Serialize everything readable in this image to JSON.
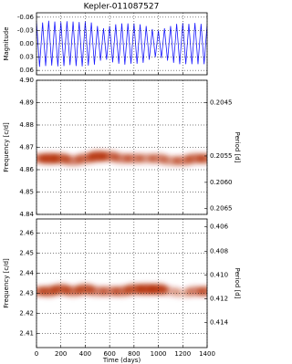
{
  "chart_data": [
    {
      "type": "line",
      "title": "Kepler-011087527",
      "ylabel": "Magnitude",
      "color": "#1a1aff",
      "x": [
        0,
        25,
        50,
        75,
        100,
        125,
        150,
        175,
        200,
        225,
        250,
        275,
        300,
        325,
        350,
        375,
        400,
        425,
        450,
        475,
        500,
        525,
        550,
        575,
        600,
        625,
        650,
        675,
        700,
        725,
        750,
        775,
        800,
        825,
        850,
        875,
        900,
        925,
        950,
        975,
        1000,
        1025,
        1050,
        1075,
        1100,
        1125,
        1150,
        1175,
        1200,
        1225,
        1250,
        1275,
        1300,
        1325,
        1350,
        1375,
        1400
      ],
      "values": [
        -0.05,
        0.052,
        -0.048,
        0.05,
        -0.052,
        0.049,
        -0.05,
        0.051,
        -0.049,
        0.05,
        -0.051,
        0.048,
        -0.05,
        0.05,
        -0.049,
        0.051,
        -0.05,
        0.049,
        -0.048,
        0.047,
        -0.04,
        0.038,
        -0.035,
        0.036,
        -0.04,
        0.042,
        -0.044,
        0.045,
        -0.046,
        0.047,
        -0.046,
        0.045,
        -0.046,
        0.045,
        -0.044,
        0.043,
        -0.04,
        0.036,
        -0.033,
        0.03,
        -0.03,
        0.032,
        -0.035,
        0.038,
        -0.04,
        0.043,
        -0.045,
        0.046,
        -0.047,
        0.046,
        -0.045,
        0.046,
        -0.047,
        0.046,
        -0.045,
        0.046,
        -0.044
      ],
      "xlim": [
        0,
        1400
      ],
      "xticks": [
        0,
        200,
        400,
        600,
        800,
        1000,
        1200,
        1400
      ],
      "ylim": [
        -0.07,
        0.07
      ],
      "y_inverted": true,
      "yticks": [
        -0.06,
        -0.03,
        {
          "value": 0,
          "label": "0.00"
        },
        0.03,
        0.06
      ],
      "grid": true
    },
    {
      "type": "heatmap",
      "ylabel": "Frequency [c/d]",
      "y2label": "Period [d]",
      "color": "#b22a00",
      "x": [
        0,
        100,
        200,
        300,
        400,
        500,
        600,
        700,
        800,
        900,
        1000,
        1100,
        1200,
        1300,
        1400
      ],
      "values": [
        4.865,
        4.865,
        4.865,
        4.864,
        4.865,
        4.866,
        4.866,
        4.865,
        4.865,
        4.865,
        4.865,
        4.864,
        4.864,
        4.865,
        4.865
      ],
      "power": [
        0.6,
        0.9,
        0.8,
        0.6,
        0.7,
        0.9,
        0.7,
        0.6,
        0.6,
        0.5,
        0.6,
        0.5,
        0.6,
        0.7,
        0.7
      ],
      "xlim": [
        0,
        1400
      ],
      "xticks": [
        0,
        200,
        400,
        600,
        800,
        1000,
        1200,
        1400
      ],
      "ylim": [
        4.84,
        4.9
      ],
      "yticks": [
        4.84,
        4.85,
        4.86,
        4.87,
        4.88,
        4.89,
        {
          "value": 4.9,
          "label": "4.90"
        }
      ],
      "y2lim": [
        0.20661,
        0.20408
      ],
      "y2ticks": [
        0.2045,
        {
          "value": 0.2055,
          "label": "0.2055"
        },
        {
          "value": 0.206,
          "label": "0.2060"
        },
        0.2065
      ],
      "grid": true
    },
    {
      "type": "heatmap",
      "xlabel": "Time (days)",
      "ylabel": "Frequency [c/d]",
      "y2label": "Period [d]",
      "color": "#b22a00",
      "x": [
        0,
        100,
        200,
        300,
        400,
        500,
        600,
        700,
        800,
        900,
        1000,
        1100,
        1200,
        1300,
        1400
      ],
      "values": [
        2.431,
        2.431,
        2.432,
        2.431,
        2.432,
        2.431,
        2.431,
        2.431,
        2.432,
        2.432,
        2.432,
        2.431,
        2.43,
        2.431,
        2.431
      ],
      "power": [
        0.6,
        0.8,
        0.8,
        0.7,
        0.8,
        0.6,
        0.6,
        0.7,
        0.8,
        0.9,
        0.9,
        0.4,
        0.3,
        0.6,
        0.7
      ],
      "xlim": [
        0,
        1400
      ],
      "xticks": [
        0,
        200,
        400,
        600,
        800,
        1000,
        1200,
        1400
      ],
      "ylim": [
        2.403,
        2.467
      ],
      "yticks": [
        2.41,
        2.42,
        2.43,
        2.44,
        2.45,
        2.46
      ],
      "y2lim": [
        0.41615,
        0.40535
      ],
      "y2ticks": [
        0.406,
        0.408,
        {
          "value": 0.41,
          "label": "0.410"
        },
        0.412,
        0.414
      ],
      "grid": true
    }
  ]
}
